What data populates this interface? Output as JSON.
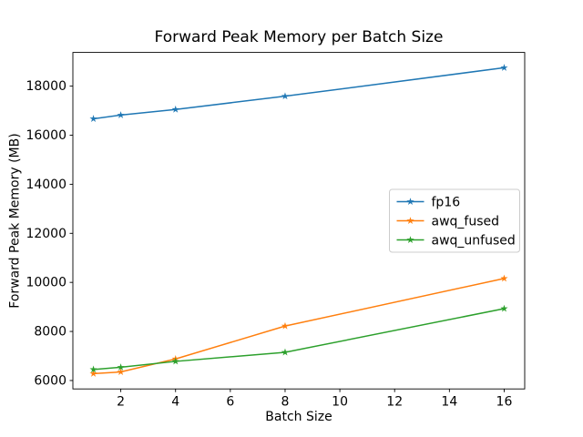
{
  "chart_data": {
    "type": "line",
    "title": "Forward Peak Memory per Batch Size",
    "xlabel": "Batch Size",
    "ylabel": "Forward Peak Memory (MB)",
    "x": [
      1,
      2,
      4,
      8,
      16
    ],
    "series": [
      {
        "name": "fp16",
        "color": "#1f77b4",
        "values": [
          16670,
          16820,
          17050,
          17590,
          18750
        ]
      },
      {
        "name": "awq_fused",
        "color": "#ff7f0e",
        "values": [
          6280,
          6350,
          6880,
          8220,
          10160
        ]
      },
      {
        "name": "awq_unfused",
        "color": "#2ca02c",
        "values": [
          6450,
          6540,
          6780,
          7150,
          8930
        ]
      }
    ],
    "marker": "star",
    "line_width": 1.5,
    "xticks": [
      2,
      4,
      6,
      8,
      10,
      12,
      14,
      16
    ],
    "yticks": [
      6000,
      8000,
      10000,
      12000,
      14000,
      16000,
      18000
    ],
    "xlim": [
      0.25,
      16.75
    ],
    "ylim": [
      5657,
      19374
    ],
    "grid": false,
    "legend_position": "center right",
    "axis_color": "#000000",
    "background_color": "#ffffff"
  }
}
